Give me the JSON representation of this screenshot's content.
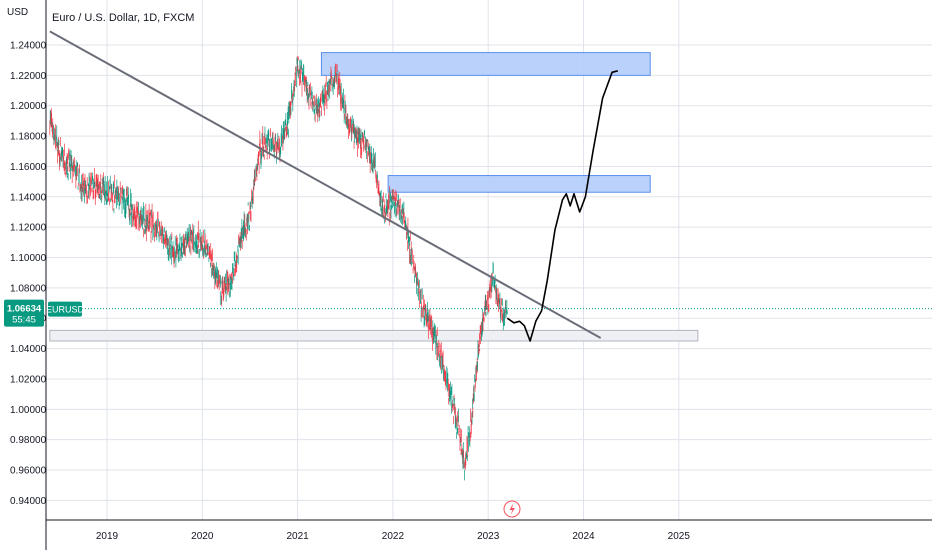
{
  "chart_data": {
    "type": "candlestick",
    "title": "Euro / U.S. Dollar, 1D, FXCM",
    "y_unit": "USD",
    "ylim": [
      0.93,
      1.255
    ],
    "xlim": [
      2018.4,
      2026.9
    ],
    "y_ticks": [
      {
        "value": 1.24,
        "label": "1.24000"
      },
      {
        "value": 1.22,
        "label": "1.22000"
      },
      {
        "value": 1.2,
        "label": "1.20000"
      },
      {
        "value": 1.18,
        "label": "1.18000"
      },
      {
        "value": 1.16,
        "label": "1.16000"
      },
      {
        "value": 1.14,
        "label": "1.14000"
      },
      {
        "value": 1.12,
        "label": "1.12000"
      },
      {
        "value": 1.1,
        "label": "1.10000"
      },
      {
        "value": 1.08,
        "label": "1.08000"
      },
      {
        "value": 1.06,
        "label": "1.06000"
      },
      {
        "value": 1.04,
        "label": "1.04000"
      },
      {
        "value": 1.02,
        "label": "1.02000"
      },
      {
        "value": 1.0,
        "label": "1.00000"
      },
      {
        "value": 0.98,
        "label": "0.98000"
      },
      {
        "value": 0.96,
        "label": "0.96000"
      },
      {
        "value": 0.94,
        "label": "0.94000"
      }
    ],
    "x_ticks": [
      {
        "value": 2019,
        "label": "2019"
      },
      {
        "value": 2020,
        "label": "2020"
      },
      {
        "value": 2021,
        "label": "2021"
      },
      {
        "value": 2022,
        "label": "2022"
      },
      {
        "value": 2023,
        "label": "2023"
      },
      {
        "value": 2024,
        "label": "2024"
      },
      {
        "value": 2025,
        "label": "2025"
      }
    ],
    "price_path": [
      [
        2018.4,
        1.192
      ],
      [
        2018.5,
        1.168
      ],
      [
        2018.65,
        1.158
      ],
      [
        2018.75,
        1.145
      ],
      [
        2018.9,
        1.147
      ],
      [
        2019.05,
        1.142
      ],
      [
        2019.2,
        1.137
      ],
      [
        2019.35,
        1.124
      ],
      [
        2019.5,
        1.122
      ],
      [
        2019.6,
        1.112
      ],
      [
        2019.7,
        1.102
      ],
      [
        2019.8,
        1.108
      ],
      [
        2019.9,
        1.114
      ],
      [
        2020.0,
        1.108
      ],
      [
        2020.1,
        1.098
      ],
      [
        2020.2,
        1.076
      ],
      [
        2020.3,
        1.085
      ],
      [
        2020.4,
        1.112
      ],
      [
        2020.5,
        1.128
      ],
      [
        2020.6,
        1.17
      ],
      [
        2020.7,
        1.178
      ],
      [
        2020.8,
        1.172
      ],
      [
        2020.9,
        1.19
      ],
      [
        2021.0,
        1.225
      ],
      [
        2021.1,
        1.212
      ],
      [
        2021.2,
        1.195
      ],
      [
        2021.3,
        1.208
      ],
      [
        2021.4,
        1.22
      ],
      [
        2021.5,
        1.196
      ],
      [
        2021.6,
        1.18
      ],
      [
        2021.7,
        1.176
      ],
      [
        2021.8,
        1.162
      ],
      [
        2021.9,
        1.13
      ],
      [
        2022.0,
        1.138
      ],
      [
        2022.1,
        1.13
      ],
      [
        2022.2,
        1.1
      ],
      [
        2022.3,
        1.07
      ],
      [
        2022.4,
        1.055
      ],
      [
        2022.5,
        1.035
      ],
      [
        2022.6,
        1.01
      ],
      [
        2022.7,
        0.985
      ],
      [
        2022.75,
        0.965
      ],
      [
        2022.8,
        0.98
      ],
      [
        2022.85,
        1.01
      ],
      [
        2022.9,
        1.04
      ],
      [
        2022.95,
        1.06
      ],
      [
        2023.0,
        1.07
      ],
      [
        2023.05,
        1.09
      ],
      [
        2023.1,
        1.07
      ],
      [
        2023.15,
        1.062
      ],
      [
        2023.2,
        1.066
      ]
    ],
    "trendline": {
      "points": [
        [
          2018.4,
          1.249
        ],
        [
          2024.18,
          1.047
        ]
      ]
    },
    "zones": [
      {
        "x0": 2021.25,
        "x1": 2024.7,
        "y0": 1.22,
        "y1": 1.235,
        "fill": "#b3cdfb",
        "stroke": "#5b8def"
      },
      {
        "x0": 2021.95,
        "x1": 2024.7,
        "y0": 1.143,
        "y1": 1.154,
        "fill": "#b3cdfb",
        "stroke": "#5b8def"
      },
      {
        "x0": 2018.4,
        "x1": 2025.2,
        "y0": 1.045,
        "y1": 1.052,
        "fill": "#eceef3",
        "stroke": "#b2b5be"
      }
    ],
    "projection": [
      [
        2023.2,
        1.06
      ],
      [
        2023.27,
        1.057
      ],
      [
        2023.33,
        1.058
      ],
      [
        2023.38,
        1.055
      ],
      [
        2023.44,
        1.045
      ],
      [
        2023.5,
        1.058
      ],
      [
        2023.56,
        1.065
      ],
      [
        2023.62,
        1.085
      ],
      [
        2023.7,
        1.118
      ],
      [
        2023.78,
        1.138
      ],
      [
        2023.82,
        1.142
      ],
      [
        2023.86,
        1.134
      ],
      [
        2023.9,
        1.142
      ],
      [
        2023.96,
        1.13
      ],
      [
        2024.02,
        1.14
      ],
      [
        2024.1,
        1.17
      ],
      [
        2024.2,
        1.205
      ],
      [
        2024.3,
        1.222
      ],
      [
        2024.36,
        1.223
      ]
    ],
    "current_price": {
      "value": 1.06634,
      "label": "1.06634",
      "countdown": "55:45",
      "symbol": "EURUSD",
      "color": "#089981"
    },
    "up_color": "#089981",
    "down_color": "#f23645",
    "grid": true
  }
}
